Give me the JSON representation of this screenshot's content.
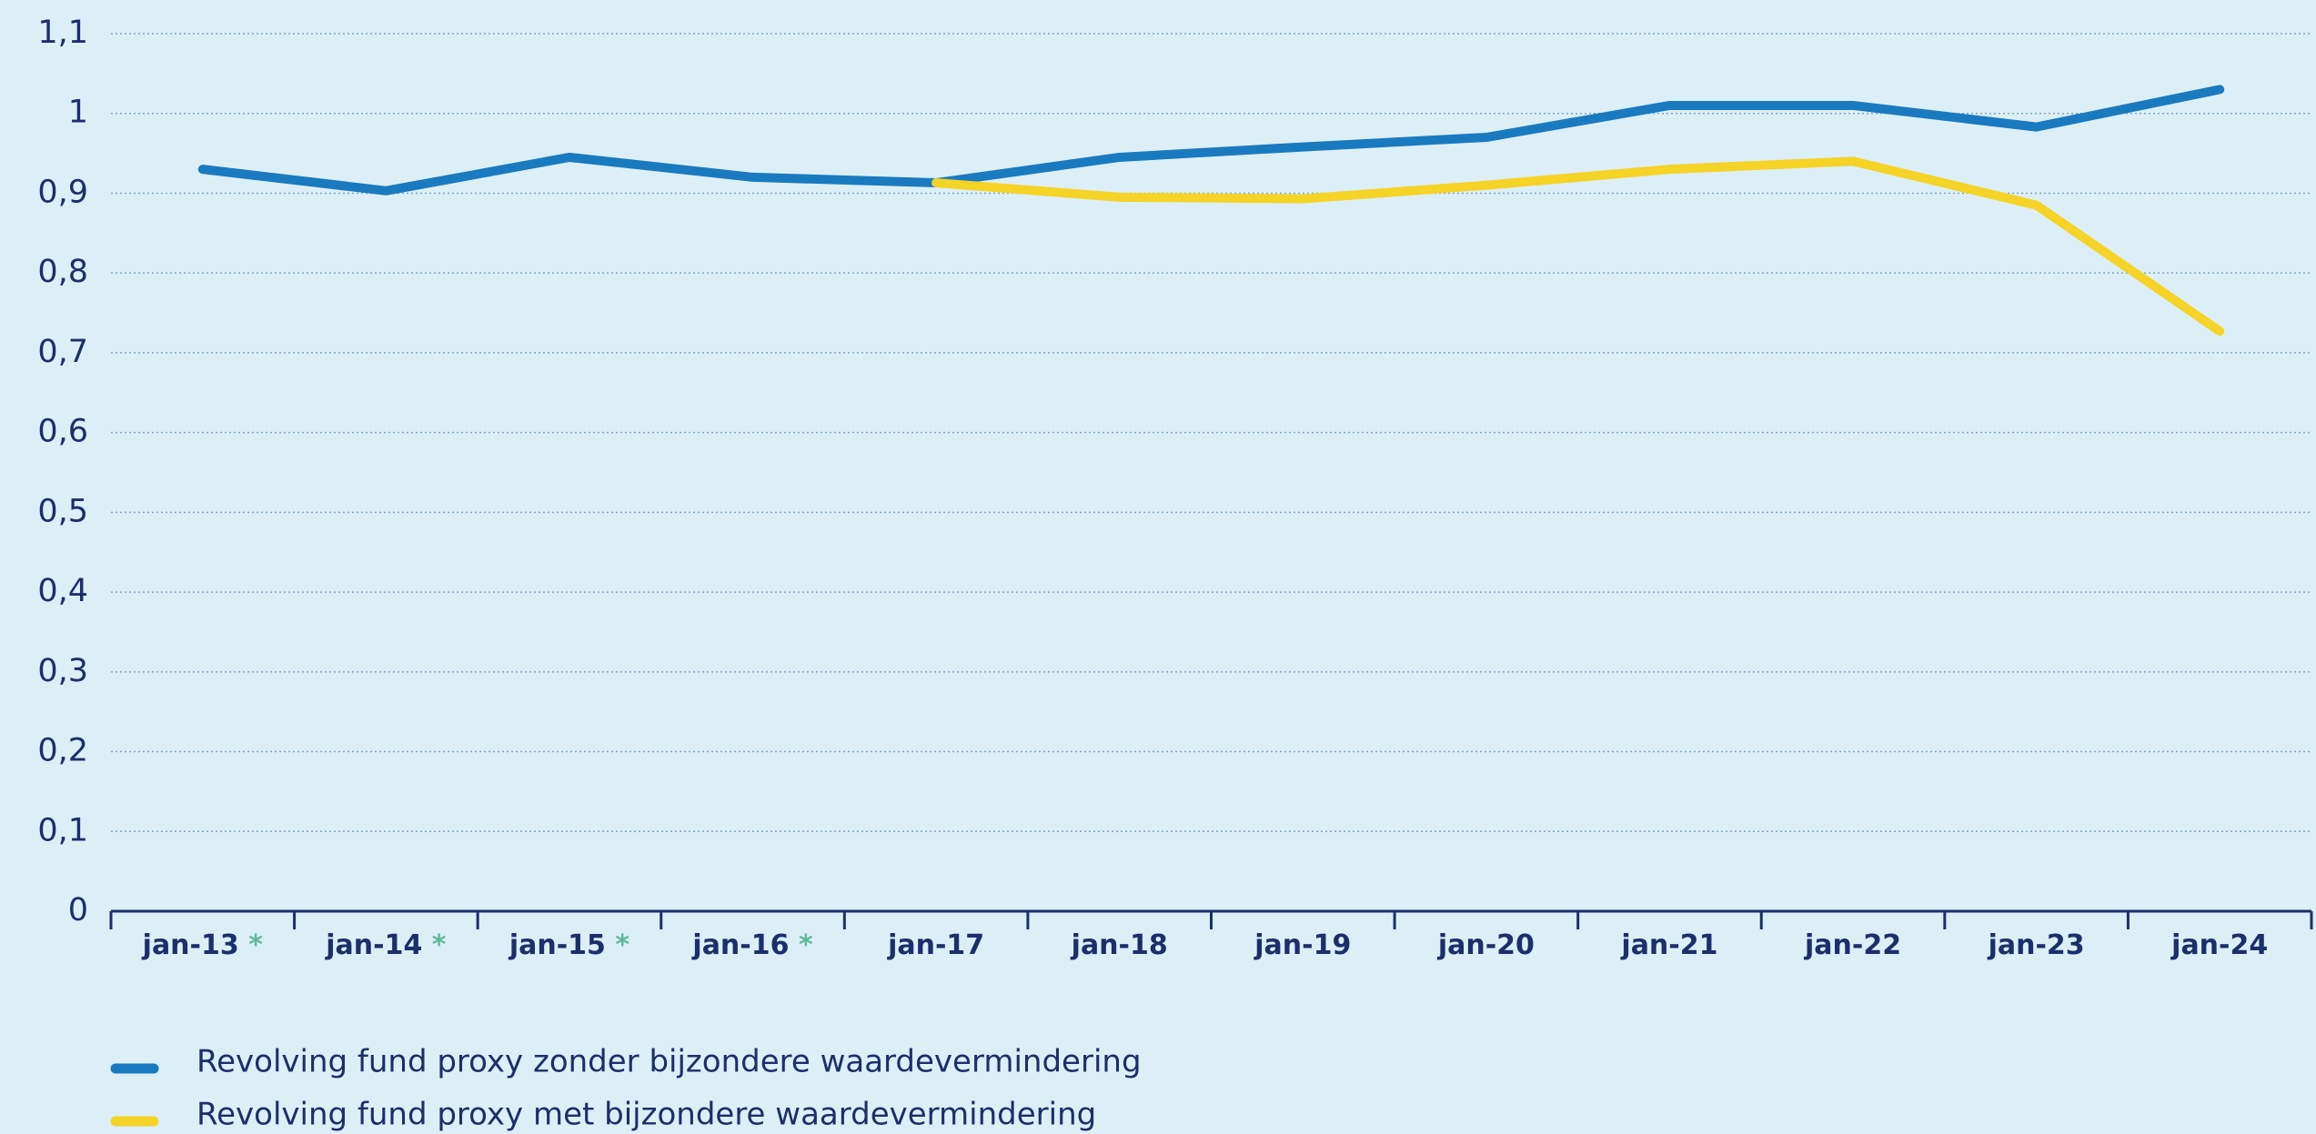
{
  "chart_data": {
    "type": "line",
    "categories": [
      "jan-13",
      "jan-14",
      "jan-15",
      "jan-16",
      "jan-17",
      "jan-18",
      "jan-19",
      "jan-20",
      "jan-21",
      "jan-22",
      "jan-23",
      "jan-24"
    ],
    "category_marks": [
      "*",
      "*",
      "*",
      "*",
      null,
      null,
      null,
      null,
      null,
      null,
      null,
      null
    ],
    "category_mark_color": "#5fb89a",
    "series": [
      {
        "name": "Revolving fund proxy zonder bijzondere waardevermindering",
        "color": "#1a7abf",
        "values": [
          0.93,
          0.903,
          0.945,
          0.92,
          0.913,
          0.945,
          0.958,
          0.97,
          1.01,
          1.01,
          0.983,
          1.03
        ]
      },
      {
        "name": "Revolving fund proxy met bijzondere waardevermindering",
        "color": "#f5d327",
        "values": [
          null,
          null,
          null,
          null,
          0.913,
          0.895,
          0.893,
          0.91,
          0.93,
          0.94,
          0.885,
          0.727
        ]
      }
    ],
    "ylim": [
      0,
      1.1
    ],
    "yticks": [
      0,
      {
        "value": 0.1,
        "label": "0,1"
      },
      {
        "value": 0.2,
        "label": "0,2"
      },
      {
        "value": 0.3,
        "label": "0,3"
      },
      {
        "value": 0.4,
        "label": "0,4"
      },
      {
        "value": 0.5,
        "label": "0,5"
      },
      {
        "value": 0.6,
        "label": "0,6"
      },
      {
        "value": 0.7,
        "label": "0,7"
      },
      {
        "value": 0.8,
        "label": "0,8"
      },
      {
        "value": 0.9,
        "label": "0,9"
      },
      1,
      {
        "value": 1.1,
        "label": "1,1"
      }
    ],
    "grid": true
  }
}
